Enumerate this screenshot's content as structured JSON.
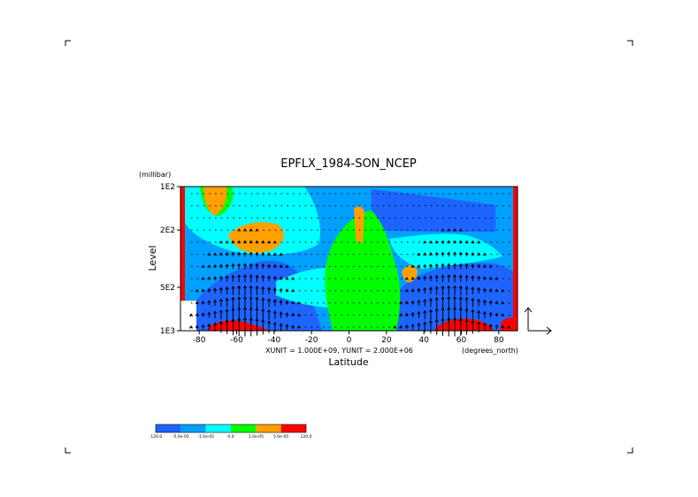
{
  "chart_data": {
    "type": "heatmap",
    "title": "EPFLX_1984-SON_NCEP",
    "xlabel": "Latitude",
    "ylabel": "Level",
    "y_unit": "(millibar)",
    "x_unit": "(degrees_north)",
    "vector_units": "XUNIT = 1.000E+09, YUNIT = 2.000E+06",
    "xlim": [
      -90,
      90
    ],
    "ylim": [
      1000,
      100
    ],
    "y_scale": "log",
    "x_ticks": [
      -80,
      -60,
      -40,
      -20,
      0,
      20,
      40,
      60,
      80
    ],
    "x_tick_labels": [
      "-80",
      "-60",
      "-40",
      "-20",
      "0",
      "20",
      "40",
      "60",
      "80"
    ],
    "y_ticks": [
      100,
      200,
      500,
      1000
    ],
    "y_tick_labels": [
      "1E2",
      "2E2",
      "5E2",
      "1E3"
    ],
    "colorbar": {
      "levels": [
        -120,
        -5e-05,
        -1e-05,
        0,
        1e-05,
        5e-05,
        120
      ],
      "labels": [
        "-120.0",
        "-5.0e-05",
        "-1.0e-05",
        "0.0",
        "1.0e-05",
        "5.0e-05",
        "120.0"
      ],
      "colors": [
        "#1e64ff",
        "#00a0ff",
        "#00ffff",
        "#00ff00",
        "#ffa000",
        "#ff0000"
      ]
    },
    "vector_field": "arrows"
  }
}
